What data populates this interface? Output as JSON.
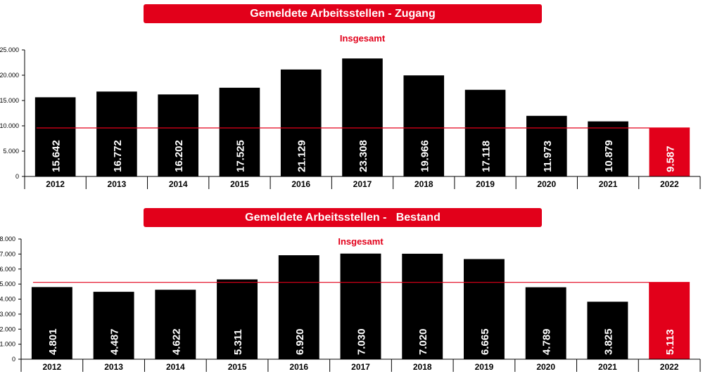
{
  "colors": {
    "accent": "#e2001a",
    "bar": "#000000",
    "text": "#000000"
  },
  "chart_data": [
    {
      "type": "bar",
      "banner": "Gemeldete Arbeitsstellen - Zugang",
      "title": "Insgesamt",
      "categories": [
        "2012",
        "2013",
        "2014",
        "2015",
        "2016",
        "2017",
        "2018",
        "2019",
        "2020",
        "2021",
        "2022"
      ],
      "values": [
        15642,
        16772,
        16202,
        17525,
        21129,
        23308,
        19966,
        17118,
        11973,
        10879,
        9587
      ],
      "value_labels": [
        "15.642",
        "16.772",
        "16.202",
        "17.525",
        "21.129",
        "23.308",
        "19.966",
        "17.118",
        "11.973",
        "10.879",
        "9.587"
      ],
      "highlight_index": 10,
      "reference_line": 9587,
      "ylim": [
        0,
        25000
      ],
      "yticks": [
        0,
        5000,
        10000,
        15000,
        20000,
        25000
      ],
      "ytick_labels": [
        "0",
        "5.000",
        "10.000",
        "15.000",
        "20.000",
        "25.000"
      ],
      "grid": false,
      "legend": "none"
    },
    {
      "type": "bar",
      "banner": "Gemeldete Arbeitsstellen -   Bestand",
      "title": "Insgesamt",
      "categories": [
        "2012",
        "2013",
        "2014",
        "2015",
        "2016",
        "2017",
        "2018",
        "2019",
        "2020",
        "2021",
        "2022"
      ],
      "values": [
        4801,
        4487,
        4622,
        5311,
        6920,
        7030,
        7020,
        6665,
        4789,
        3825,
        5113
      ],
      "value_labels": [
        "4.801",
        "4.487",
        "4.622",
        "5.311",
        "6.920",
        "7.030",
        "7.020",
        "6.665",
        "4.789",
        "3.825",
        "5.113"
      ],
      "highlight_index": 10,
      "reference_line": 5113,
      "ylim": [
        0,
        8000
      ],
      "yticks": [
        0,
        1000,
        2000,
        3000,
        4000,
        5000,
        6000,
        7000,
        8000
      ],
      "ytick_labels": [
        "0",
        "1.000",
        "2.000",
        "3.000",
        "4.000",
        "5.000",
        "6.000",
        "7.000",
        "8.000"
      ],
      "grid": false,
      "legend": "none"
    }
  ]
}
